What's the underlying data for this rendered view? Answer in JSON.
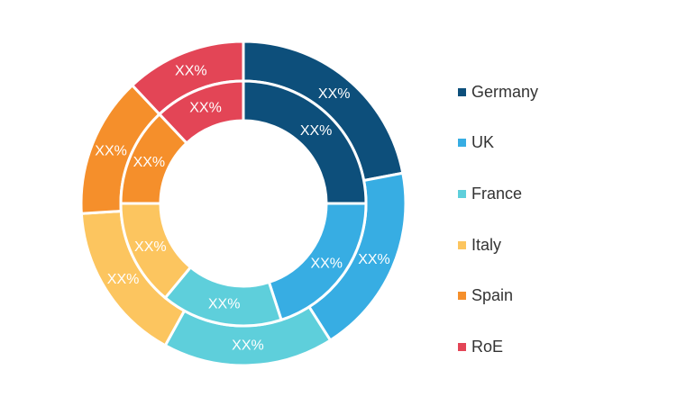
{
  "chart_data": {
    "type": "donut",
    "series": [
      {
        "ring": "outer",
        "values": [
          {
            "category": "Germany",
            "value": 22,
            "label": "XX%"
          },
          {
            "category": "UK",
            "value": 19,
            "label": "XX%"
          },
          {
            "category": "France",
            "value": 17,
            "label": "XX%"
          },
          {
            "category": "Italy",
            "value": 16,
            "label": "XX%"
          },
          {
            "category": "Spain",
            "value": 14,
            "label": "XX%"
          },
          {
            "category": "RoE",
            "value": 12,
            "label": "XX%"
          }
        ]
      },
      {
        "ring": "inner",
        "values": [
          {
            "category": "Germany",
            "value": 25,
            "label": "XX%"
          },
          {
            "category": "UK",
            "value": 20,
            "label": "XX%"
          },
          {
            "category": "France",
            "value": 16,
            "label": "XX%"
          },
          {
            "category": "Italy",
            "value": 14,
            "label": "XX%"
          },
          {
            "category": "Spain",
            "value": 13,
            "label": "XX%"
          },
          {
            "category": "RoE",
            "value": 12,
            "label": "XX%"
          }
        ]
      }
    ],
    "legend": {
      "placement": "right",
      "items": [
        {
          "label": "Germany",
          "color": "#0d4f7b"
        },
        {
          "label": "UK",
          "color": "#37ade3"
        },
        {
          "label": "France",
          "color": "#5ecfdb"
        },
        {
          "label": "Italy",
          "color": "#fcc55f"
        },
        {
          "label": "Spain",
          "color": "#f58f2b"
        },
        {
          "label": "RoE",
          "color": "#e34556"
        }
      ]
    }
  }
}
